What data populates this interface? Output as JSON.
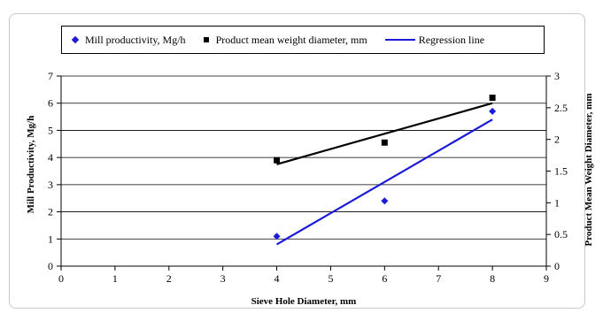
{
  "chart_data": {
    "type": "scatter",
    "xlabel": "Sieve Hole Diameter, mm",
    "ylabel_left": "Mill Productivity, Mg/h",
    "ylabel_right": "Product Mean Weight Diameter, mm",
    "xlim": [
      0,
      9
    ],
    "ylim_left": [
      0,
      7
    ],
    "ylim_right": [
      0,
      3
    ],
    "x_ticks": [
      "0",
      "1",
      "2",
      "3",
      "4",
      "5",
      "6",
      "7",
      "8",
      "9"
    ],
    "y_left_ticks": [
      "0",
      "1",
      "2",
      "3",
      "4",
      "5",
      "6",
      "7"
    ],
    "y_right_ticks": [
      "0",
      "0.5",
      "1",
      "1.5",
      "2",
      "2.5",
      "3"
    ],
    "grid": "horizontal",
    "legend_position": "top",
    "series": [
      {
        "name": "Mill productivity, Mg/h",
        "marker": "diamond",
        "color": "#1a1adb",
        "axis": "left",
        "x": [
          4,
          6,
          8
        ],
        "y": [
          1.1,
          2.4,
          5.7
        ]
      },
      {
        "name": "Product mean weight diameter, mm",
        "marker": "square",
        "color": "#000000",
        "axis": "left",
        "x": [
          4,
          6,
          8
        ],
        "y": [
          3.9,
          4.55,
          6.2
        ]
      }
    ],
    "regression_lines": [
      {
        "color": "#1a1adb",
        "axis": "left",
        "x": [
          4,
          8
        ],
        "y": [
          0.8,
          5.4
        ]
      },
      {
        "color": "#000000",
        "axis": "left",
        "x": [
          4,
          8
        ],
        "y": [
          3.75,
          6.0
        ]
      }
    ],
    "legend": [
      {
        "label": "Mill productivity, Mg/h",
        "swatch": "diamond"
      },
      {
        "label": "Product mean weight diameter, mm",
        "swatch": "square"
      },
      {
        "label": "Regression line",
        "swatch": "line"
      }
    ]
  }
}
